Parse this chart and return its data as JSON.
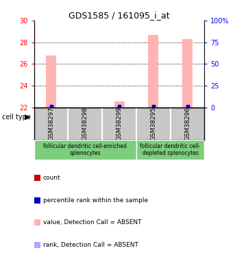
{
  "title": "GDS1585 / 161095_i_at",
  "samples": [
    "GSM38297",
    "GSM38298",
    "GSM38299",
    "GSM38295",
    "GSM38296"
  ],
  "ylim_left": [
    22,
    30
  ],
  "ylim_right": [
    0,
    100
  ],
  "yticks_left": [
    22,
    24,
    26,
    28,
    30
  ],
  "yticks_right": [
    0,
    25,
    50,
    75,
    100
  ],
  "pink_bar_values": [
    26.8,
    22.0,
    22.55,
    28.7,
    28.3
  ],
  "blue_bar_values": [
    22.12,
    22.0,
    22.12,
    22.15,
    22.12
  ],
  "pink_bar_color": "#FFB3B3",
  "blue_bar_color": "#AAAAFF",
  "red_sq_color": "#CC0000",
  "blue_sq_color": "#0000CC",
  "group1_label": "follicular dendritic cell-enriched\nsplenocytes",
  "group2_label": "follicular dendritic cell-\ndepleted splenocytes",
  "group_bg": "#7CCD7C",
  "sample_bg": "#C8C8C8",
  "cell_type_label": "cell type",
  "bar_width": 0.3,
  "baseline": 22.0,
  "legend_labels": [
    "count",
    "percentile rank within the sample",
    "value, Detection Call = ABSENT",
    "rank, Detection Call = ABSENT"
  ],
  "legend_colors": [
    "#CC0000",
    "#0000CC",
    "#FFB3B3",
    "#AAAAFF"
  ]
}
